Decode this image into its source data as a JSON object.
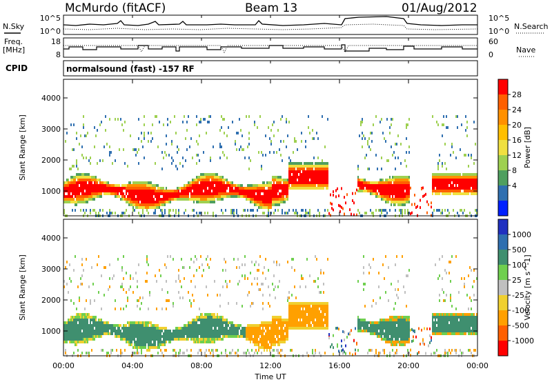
{
  "header": {
    "title": "McMurdo (fitACF)",
    "beam": "Beam 13",
    "date": "01/Aug/2012"
  },
  "noise_panel": {
    "left_label": "N.Sky",
    "right_label": "N.Search",
    "left_ticks": [
      "10^5",
      "10^0"
    ],
    "right_ticks": [
      "10^5",
      "10^0"
    ]
  },
  "freq_panel": {
    "left_label_line1": "Freq.",
    "left_label_line2": "[MHz]",
    "right_label": "Nave",
    "left_ticks": [
      "18",
      "8"
    ],
    "right_ticks": [
      "60",
      "0"
    ]
  },
  "cpid_panel": {
    "label": "CPID",
    "text": "normalsound (fast) -157 RF"
  },
  "x_axis": {
    "label": "Time UT",
    "ticks": [
      "00:00",
      "04:00",
      "08:00",
      "12:00",
      "16:00",
      "20:00",
      "00:00"
    ]
  },
  "chart_data": [
    {
      "type": "heatmap",
      "quantity": "Power",
      "ylabel": "Slant Range [km]",
      "xlabel": "Time UT",
      "ylim": [
        200,
        4600
      ],
      "yticks": [
        "1000",
        "2000",
        "3000",
        "4000"
      ],
      "colorbar_label": "Power [dB]",
      "colorbar_ticks": [
        "28",
        "24",
        "20",
        "16",
        "12",
        "8",
        "4"
      ],
      "colorbar_colors": [
        "#ff0000",
        "#ff6000",
        "#ff9000",
        "#ffbf00",
        "#f0e040",
        "#9ed050",
        "#4f9f5f",
        "#2f6fb0",
        "#0020ff"
      ]
    },
    {
      "type": "heatmap",
      "quantity": "Velocity",
      "ylabel": "Slant Range [km]",
      "xlabel": "Time UT",
      "ylim": [
        200,
        4600
      ],
      "yticks": [
        "1000",
        "2000",
        "3000",
        "4000"
      ],
      "colorbar_label": "Velocity [m s^-1]",
      "colorbar_ticks": [
        "1000",
        "500",
        "100",
        "25",
        "-25",
        "-100",
        "-500",
        "-1000"
      ],
      "colorbar_colors": [
        "#2030c0",
        "#2f6fb0",
        "#3f8f6f",
        "#6fcf4f",
        "#c0c0c0",
        "#f0d030",
        "#ffa000",
        "#ff6000",
        "#ff0000"
      ]
    }
  ]
}
